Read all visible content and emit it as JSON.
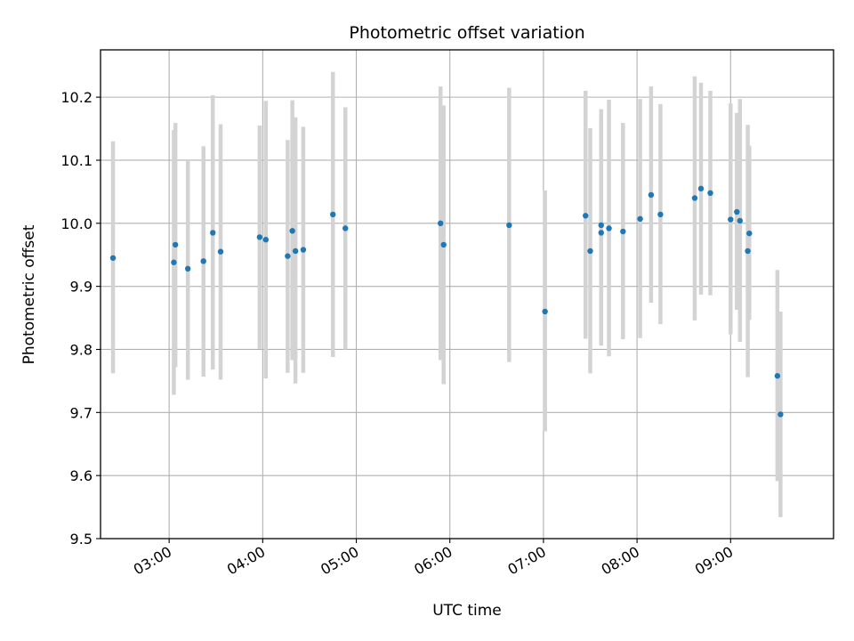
{
  "chart_data": {
    "type": "scatter",
    "title": "Photometric offset variation",
    "xlabel": "UTC time",
    "ylabel": "Photometric offset",
    "x_unit": "hours UTC",
    "xlim": [
      "02:16",
      "10:06"
    ],
    "ylim": [
      9.5,
      10.275
    ],
    "xticks": [
      {
        "time": "03:00",
        "label": "03:00"
      },
      {
        "time": "04:00",
        "label": "04:00"
      },
      {
        "time": "05:00",
        "label": "05:00"
      },
      {
        "time": "06:00",
        "label": "06:00"
      },
      {
        "time": "07:00",
        "label": "07:00"
      },
      {
        "time": "08:00",
        "label": "08:00"
      },
      {
        "time": "09:00",
        "label": "09:00"
      }
    ],
    "yticks": [
      {
        "value": 9.5,
        "label": "9.5"
      },
      {
        "value": 9.6,
        "label": "9.6"
      },
      {
        "value": 9.7,
        "label": "9.7"
      },
      {
        "value": 9.8,
        "label": "9.8"
      },
      {
        "value": 9.9,
        "label": "9.9"
      },
      {
        "value": 10.0,
        "label": "10.0"
      },
      {
        "value": 10.1,
        "label": "10.1"
      },
      {
        "value": 10.2,
        "label": "10.2"
      }
    ],
    "grid": true,
    "marker_color": "#1f77b4",
    "errorbar_color": "#d3d3d3",
    "points": [
      {
        "time": "02:24",
        "y": 9.945,
        "low": 9.762,
        "high": 10.13
      },
      {
        "time": "03:03",
        "y": 9.938,
        "low": 9.728,
        "high": 10.148
      },
      {
        "time": "03:04",
        "y": 9.966,
        "low": 9.772,
        "high": 10.159
      },
      {
        "time": "03:12",
        "y": 9.928,
        "low": 9.752,
        "high": 10.1
      },
      {
        "time": "03:22",
        "y": 9.94,
        "low": 9.757,
        "high": 10.122
      },
      {
        "time": "03:28",
        "y": 9.985,
        "low": 9.768,
        "high": 10.203
      },
      {
        "time": "03:33",
        "y": 9.955,
        "low": 9.752,
        "high": 10.157
      },
      {
        "time": "03:58",
        "y": 9.978,
        "low": 9.801,
        "high": 10.155
      },
      {
        "time": "04:02",
        "y": 9.974,
        "low": 9.754,
        "high": 10.194
      },
      {
        "time": "04:16",
        "y": 9.948,
        "low": 9.763,
        "high": 10.132
      },
      {
        "time": "04:19",
        "y": 9.988,
        "low": 9.783,
        "high": 10.195
      },
      {
        "time": "04:21",
        "y": 9.956,
        "low": 9.746,
        "high": 10.168
      },
      {
        "time": "04:26",
        "y": 9.958,
        "low": 9.763,
        "high": 10.153
      },
      {
        "time": "04:45",
        "y": 10.014,
        "low": 9.788,
        "high": 10.24
      },
      {
        "time": "04:53",
        "y": 9.992,
        "low": 9.8,
        "high": 10.184
      },
      {
        "time": "05:54",
        "y": 10.0,
        "low": 9.783,
        "high": 10.217
      },
      {
        "time": "05:56",
        "y": 9.966,
        "low": 9.745,
        "high": 10.187
      },
      {
        "time": "06:38",
        "y": 9.997,
        "low": 9.78,
        "high": 10.215
      },
      {
        "time": "07:01",
        "y": 9.86,
        "low": 9.67,
        "high": 10.052
      },
      {
        "time": "07:27",
        "y": 10.012,
        "low": 9.817,
        "high": 10.21
      },
      {
        "time": "07:30",
        "y": 9.956,
        "low": 9.762,
        "high": 10.151
      },
      {
        "time": "07:37",
        "y": 9.997,
        "low": 9.814,
        "high": 10.181
      },
      {
        "time": "07:37",
        "y": 9.985,
        "low": 9.806,
        "high": 10.164
      },
      {
        "time": "07:42",
        "y": 9.992,
        "low": 9.789,
        "high": 10.196
      },
      {
        "time": "07:51",
        "y": 9.987,
        "low": 9.816,
        "high": 10.159
      },
      {
        "time": "08:02",
        "y": 10.007,
        "low": 9.818,
        "high": 10.197
      },
      {
        "time": "08:09",
        "y": 10.045,
        "low": 9.874,
        "high": 10.217
      },
      {
        "time": "08:15",
        "y": 10.014,
        "low": 9.84,
        "high": 10.189
      },
      {
        "time": "08:37",
        "y": 10.04,
        "low": 9.846,
        "high": 10.233
      },
      {
        "time": "08:41",
        "y": 10.055,
        "low": 9.887,
        "high": 10.223
      },
      {
        "time": "08:47",
        "y": 10.048,
        "low": 9.886,
        "high": 10.21
      },
      {
        "time": "09:00",
        "y": 10.006,
        "low": 9.824,
        "high": 10.19
      },
      {
        "time": "09:04",
        "y": 10.018,
        "low": 9.863,
        "high": 10.175
      },
      {
        "time": "09:06",
        "y": 10.004,
        "low": 9.812,
        "high": 10.197
      },
      {
        "time": "09:11",
        "y": 9.956,
        "low": 9.756,
        "high": 10.156
      },
      {
        "time": "09:12",
        "y": 9.984,
        "low": 9.847,
        "high": 10.123
      },
      {
        "time": "09:30",
        "y": 9.758,
        "low": 9.591,
        "high": 9.926
      },
      {
        "time": "09:32",
        "y": 9.697,
        "low": 9.534,
        "high": 9.86
      }
    ]
  }
}
